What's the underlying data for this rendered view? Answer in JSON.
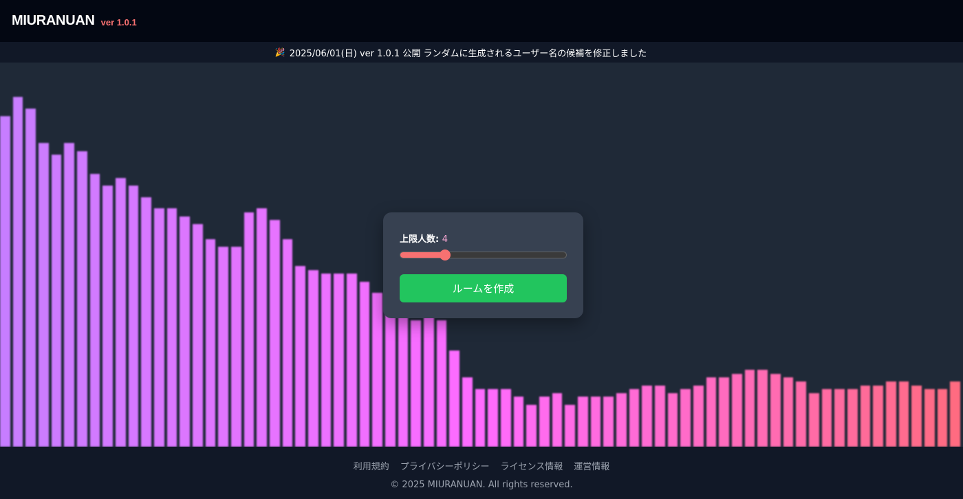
{
  "header": {
    "title": "MIURANUAN",
    "version": "ver 1.0.1"
  },
  "announcement": {
    "icon": "party-popper-icon",
    "text": "2025/06/01(日) ver 1.0.1 公開 ランダムに生成されるユーザー名の候補を修正しました"
  },
  "room_card": {
    "limit_label": "上限人数:",
    "limit_value": "4",
    "slider_fill_percent": 27,
    "create_button": "ルームを作成"
  },
  "visualizer": {
    "colors": [
      "#c77dff",
      "#ff6bff",
      "#ff6b81"
    ],
    "bar_levels": [
      86,
      91,
      88,
      79,
      76,
      79,
      77,
      71,
      68,
      70,
      68,
      65,
      62,
      62,
      60,
      58,
      54,
      52,
      52,
      61,
      62,
      59,
      54,
      47,
      46,
      45,
      45,
      45,
      43,
      40,
      37,
      34,
      33,
      34,
      33,
      25,
      18,
      15,
      15,
      15,
      13,
      11,
      13,
      14,
      11,
      13,
      13,
      13,
      14,
      15,
      16,
      16,
      14,
      15,
      16,
      18,
      18,
      19,
      20,
      20,
      19,
      18,
      17,
      14,
      15,
      15,
      15,
      16,
      16,
      17,
      17,
      16,
      15,
      15,
      17
    ]
  },
  "footer": {
    "links": [
      "利用規約",
      "プライバシーポリシー",
      "ライセンス情報",
      "運営情報"
    ],
    "copyright": "© 2025 MIURANUAN. All rights reserved."
  }
}
